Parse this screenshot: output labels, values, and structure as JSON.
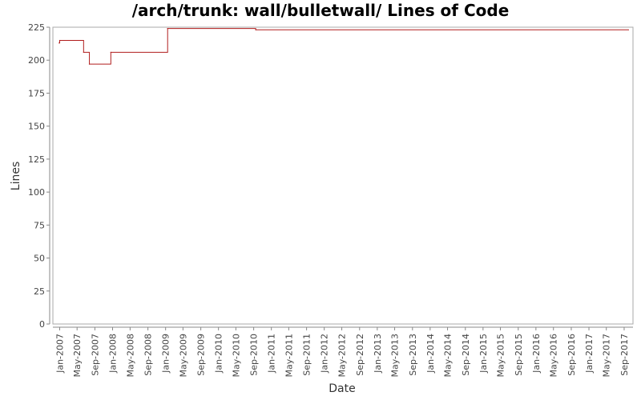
{
  "chart_data": {
    "type": "line",
    "title": "/arch/trunk: wall/bulletwall/ Lines of Code",
    "xlabel": "Date",
    "ylabel": "Lines",
    "ylim": [
      0,
      225
    ],
    "yticks": [
      0,
      25,
      50,
      75,
      100,
      125,
      150,
      175,
      200,
      225
    ],
    "xlim": [
      "2006-11-15",
      "2017-11-01"
    ],
    "xticks": [
      {
        "date": "2007-01-01",
        "label": "Jan-2007"
      },
      {
        "date": "2007-05-01",
        "label": "May-2007"
      },
      {
        "date": "2007-09-01",
        "label": "Sep-2007"
      },
      {
        "date": "2008-01-01",
        "label": "Jan-2008"
      },
      {
        "date": "2008-05-01",
        "label": "May-2008"
      },
      {
        "date": "2008-09-01",
        "label": "Sep-2008"
      },
      {
        "date": "2009-01-01",
        "label": "Jan-2009"
      },
      {
        "date": "2009-05-01",
        "label": "May-2009"
      },
      {
        "date": "2009-09-01",
        "label": "Sep-2009"
      },
      {
        "date": "2010-01-01",
        "label": "Jan-2010"
      },
      {
        "date": "2010-05-01",
        "label": "May-2010"
      },
      {
        "date": "2010-09-01",
        "label": "Sep-2010"
      },
      {
        "date": "2011-01-01",
        "label": "Jan-2011"
      },
      {
        "date": "2011-05-01",
        "label": "May-2011"
      },
      {
        "date": "2011-09-01",
        "label": "Sep-2011"
      },
      {
        "date": "2012-01-01",
        "label": "Jan-2012"
      },
      {
        "date": "2012-05-01",
        "label": "May-2012"
      },
      {
        "date": "2012-09-01",
        "label": "Sep-2012"
      },
      {
        "date": "2013-01-01",
        "label": "Jan-2013"
      },
      {
        "date": "2013-05-01",
        "label": "May-2013"
      },
      {
        "date": "2013-09-01",
        "label": "Sep-2013"
      },
      {
        "date": "2014-01-01",
        "label": "Jan-2014"
      },
      {
        "date": "2014-05-01",
        "label": "May-2014"
      },
      {
        "date": "2014-09-01",
        "label": "Sep-2014"
      },
      {
        "date": "2015-01-01",
        "label": "Jan-2015"
      },
      {
        "date": "2015-05-01",
        "label": "May-2015"
      },
      {
        "date": "2015-09-01",
        "label": "Sep-2015"
      },
      {
        "date": "2016-01-01",
        "label": "Jan-2016"
      },
      {
        "date": "2016-05-01",
        "label": "May-2016"
      },
      {
        "date": "2016-09-01",
        "label": "Sep-2016"
      },
      {
        "date": "2017-01-01",
        "label": "Jan-2017"
      },
      {
        "date": "2017-05-01",
        "label": "May-2017"
      },
      {
        "date": "2017-09-01",
        "label": "Sep-2017"
      }
    ],
    "series": [
      {
        "color": "#b01c1c",
        "step": true,
        "points": [
          {
            "x": "2006-12-28",
            "y": 213
          },
          {
            "x": "2007-01-01",
            "y": 215
          },
          {
            "x": "2007-06-15",
            "y": 206
          },
          {
            "x": "2007-07-25",
            "y": 197
          },
          {
            "x": "2007-12-20",
            "y": 206
          },
          {
            "x": "2009-01-15",
            "y": 224
          },
          {
            "x": "2010-09-15",
            "y": 223
          },
          {
            "x": "2017-10-01",
            "y": 223
          }
        ]
      }
    ],
    "grid": false,
    "legend": "none",
    "colors": {
      "line": "#b01c1c",
      "axis": "#888888",
      "text": "#333333"
    }
  }
}
